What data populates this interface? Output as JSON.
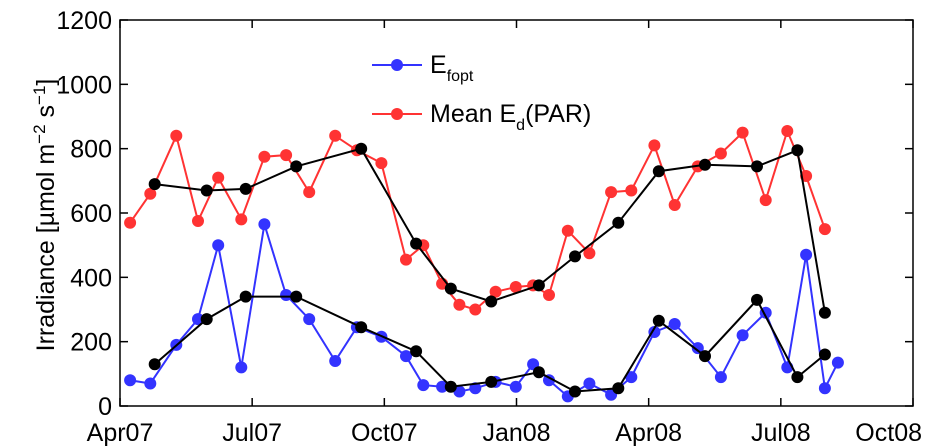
{
  "chart_data": {
    "type": "line",
    "title": "",
    "xlabel": "",
    "ylabel": "Irradiance [µmol m⁻² s⁻¹]",
    "ylabel_parts": {
      "main": "Irradiance [µmol m",
      "exp1": "−2",
      "mid": " s",
      "exp2": "−1",
      "end": "]"
    },
    "x_ticks": [
      "Apr07",
      "Jul07",
      "Oct07",
      "Jan08",
      "Apr08",
      "Jul08",
      "Oct08"
    ],
    "x_range": [
      "2007-04-01",
      "2008-10-01"
    ],
    "ylim": [
      0,
      1200
    ],
    "y_ticks": [
      0,
      200,
      400,
      600,
      800,
      1000,
      1200
    ],
    "grid": false,
    "legend_position": "top-center",
    "legend": [
      {
        "series": "efopt",
        "main": "E",
        "sub": "fopt",
        "after": ""
      },
      {
        "series": "mean_ed",
        "main": "Mean E",
        "sub": "d",
        "after": "(PAR)"
      }
    ],
    "series": [
      {
        "key": "mean_ed",
        "name": "Mean E_d(PAR)",
        "color": "#ff3333",
        "points": [
          [
            "2007-04-08",
            570
          ],
          [
            "2007-04-22",
            660
          ],
          [
            "2007-05-10",
            840
          ],
          [
            "2007-05-25",
            575
          ],
          [
            "2007-06-08",
            710
          ],
          [
            "2007-06-24",
            580
          ],
          [
            "2007-07-10",
            775
          ],
          [
            "2007-07-25",
            780
          ],
          [
            "2007-08-10",
            665
          ],
          [
            "2007-08-28",
            840
          ],
          [
            "2007-09-12",
            795
          ],
          [
            "2007-09-29",
            755
          ],
          [
            "2007-10-16",
            455
          ],
          [
            "2007-10-28",
            500
          ],
          [
            "2007-11-10",
            380
          ],
          [
            "2007-11-22",
            315
          ],
          [
            "2007-12-03",
            300
          ],
          [
            "2007-12-17",
            355
          ],
          [
            "2007-12-31",
            370
          ],
          [
            "2008-01-12",
            375
          ],
          [
            "2008-01-23",
            345
          ],
          [
            "2008-02-05",
            545
          ],
          [
            "2008-02-20",
            475
          ],
          [
            "2008-03-06",
            665
          ],
          [
            "2008-03-20",
            670
          ],
          [
            "2008-04-05",
            810
          ],
          [
            "2008-04-19",
            625
          ],
          [
            "2008-05-05",
            745
          ],
          [
            "2008-05-21",
            785
          ],
          [
            "2008-06-05",
            850
          ],
          [
            "2008-06-21",
            640
          ],
          [
            "2008-07-06",
            855
          ],
          [
            "2008-07-19",
            715
          ],
          [
            "2008-08-01",
            550
          ]
        ]
      },
      {
        "key": "mean_ed_smooth",
        "name": "",
        "color": "#000000",
        "points": [
          [
            "2007-04-25",
            690
          ],
          [
            "2007-05-31",
            670
          ],
          [
            "2007-06-27",
            675
          ],
          [
            "2007-08-01",
            745
          ],
          [
            "2007-09-15",
            800
          ],
          [
            "2007-10-23",
            505
          ],
          [
            "2007-11-16",
            365
          ],
          [
            "2007-12-14",
            325
          ],
          [
            "2008-01-16",
            375
          ],
          [
            "2008-02-10",
            465
          ],
          [
            "2008-03-11",
            570
          ],
          [
            "2008-04-08",
            730
          ],
          [
            "2008-05-10",
            750
          ],
          [
            "2008-06-15",
            745
          ],
          [
            "2008-07-13",
            795
          ],
          [
            "2008-08-01",
            290
          ]
        ]
      },
      {
        "key": "efopt",
        "name": "E_fopt",
        "color": "#3333ff",
        "points": [
          [
            "2007-04-08",
            80
          ],
          [
            "2007-04-22",
            70
          ],
          [
            "2007-05-10",
            190
          ],
          [
            "2007-05-25",
            270
          ],
          [
            "2007-06-08",
            500
          ],
          [
            "2007-06-24",
            120
          ],
          [
            "2007-07-10",
            565
          ],
          [
            "2007-07-25",
            345
          ],
          [
            "2007-08-10",
            270
          ],
          [
            "2007-08-28",
            140
          ],
          [
            "2007-09-12",
            245
          ],
          [
            "2007-09-29",
            215
          ],
          [
            "2007-10-16",
            155
          ],
          [
            "2007-10-28",
            65
          ],
          [
            "2007-11-10",
            60
          ],
          [
            "2007-11-22",
            45
          ],
          [
            "2007-12-03",
            55
          ],
          [
            "2007-12-17",
            75
          ],
          [
            "2007-12-31",
            60
          ],
          [
            "2008-01-12",
            130
          ],
          [
            "2008-01-23",
            80
          ],
          [
            "2008-02-05",
            30
          ],
          [
            "2008-02-20",
            70
          ],
          [
            "2008-03-06",
            35
          ],
          [
            "2008-03-20",
            90
          ],
          [
            "2008-04-05",
            230
          ],
          [
            "2008-04-19",
            255
          ],
          [
            "2008-05-05",
            180
          ],
          [
            "2008-05-21",
            90
          ],
          [
            "2008-06-05",
            220
          ],
          [
            "2008-06-21",
            290
          ],
          [
            "2008-07-06",
            120
          ],
          [
            "2008-07-19",
            470
          ],
          [
            "2008-08-01",
            55
          ],
          [
            "2008-08-10",
            135
          ]
        ]
      },
      {
        "key": "efopt_smooth",
        "name": "",
        "color": "#000000",
        "points": [
          [
            "2007-04-25",
            130
          ],
          [
            "2007-05-31",
            270
          ],
          [
            "2007-06-27",
            340
          ],
          [
            "2007-08-01",
            340
          ],
          [
            "2007-09-15",
            245
          ],
          [
            "2007-10-23",
            170
          ],
          [
            "2007-11-16",
            60
          ],
          [
            "2007-12-14",
            75
          ],
          [
            "2008-01-16",
            105
          ],
          [
            "2008-02-10",
            45
          ],
          [
            "2008-03-11",
            55
          ],
          [
            "2008-04-08",
            265
          ],
          [
            "2008-05-10",
            155
          ],
          [
            "2008-06-15",
            330
          ],
          [
            "2008-07-13",
            90
          ],
          [
            "2008-08-01",
            160
          ]
        ]
      }
    ]
  }
}
